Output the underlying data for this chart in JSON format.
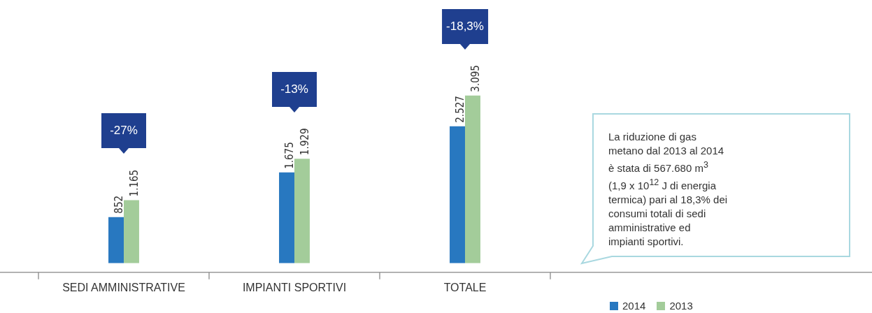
{
  "chart_data": {
    "type": "bar",
    "categories": [
      "SEDI AMMINISTRATIVE",
      "IMPIANTI SPORTIVI",
      "TOTALE"
    ],
    "series": [
      {
        "name": "2014",
        "color": "#2878c0",
        "values": [
          852,
          1675,
          2527
        ],
        "value_labels": [
          "852",
          "1.675",
          "2.527"
        ]
      },
      {
        "name": "2013",
        "color": "#a3cc9a",
        "values": [
          1165,
          1929,
          3095
        ],
        "value_labels": [
          "1.165",
          "1.929",
          "3.095"
        ]
      }
    ],
    "grid": false,
    "legend": "bottom right",
    "annotations": [
      "-27%",
      "-13%",
      "-18,3%",
      "La riduzione di gas metano dal 2013 al 2014 è stata di 567.680 m$^{3}$ (1,9 x 10$^{12}$ J di energia termica) pari al 18,3% dei consumi totali di sedi amministrative ed impianti sportivi."
    ]
  }
}
